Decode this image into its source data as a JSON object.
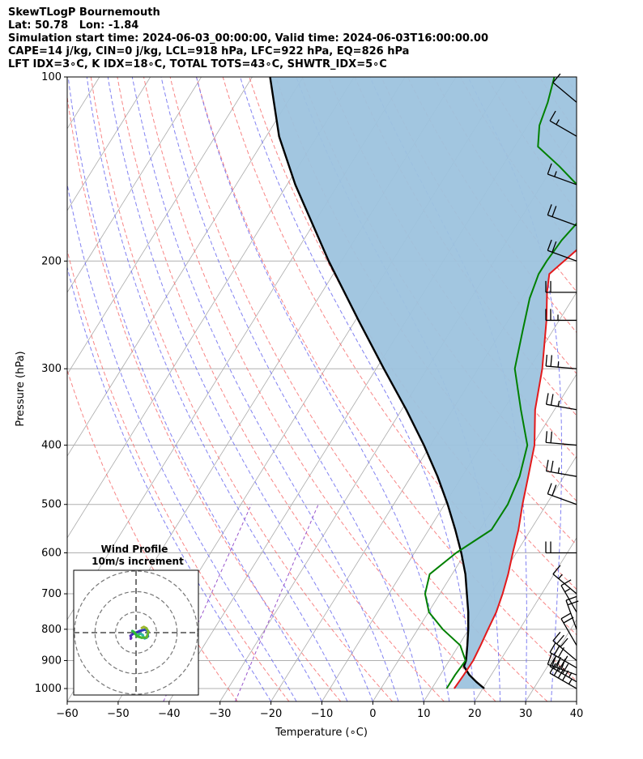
{
  "header": {
    "line1": "SkewTLogP Bournemouth",
    "line2": "Lat: 50.78   Lon: -1.84",
    "line3": "Simulation start time: 2024-06-03_00:00:00, Valid time: 2024-06-03T16:00:00.00",
    "line4": "CAPE=14 j/kg, CIN=0 j/kg, LCL=918 hPa, LFC=922 hPa, EQ=826 hPa",
    "line5": "LFT IDX=3∘C, K IDX=18∘C, TOTAL TOTS=43∘C, SHWTR_IDX=5∘C"
  },
  "chart_data": {
    "type": "line",
    "xlabel": "Temperature (∘C)",
    "ylabel": "Pressure (hPa)",
    "xlim": [
      -60,
      40
    ],
    "ylim": [
      1050,
      100
    ],
    "y_scale": "log",
    "x_ticks": [
      "−60",
      "−50",
      "−40",
      "−30",
      "−20",
      "−10",
      "0",
      "10",
      "20",
      "30",
      "40"
    ],
    "y_ticks": [
      "1000",
      "900",
      "800",
      "700",
      "600",
      "500",
      "400",
      "300",
      "200",
      "100"
    ],
    "grid": true,
    "colors": {
      "temperature": "#e31a1c",
      "dewpoint": "#008000",
      "parcel": "#000000",
      "cape_fill": "#9dc3de",
      "isotherm": "#aaaaaa",
      "dry_adiabat": "#f77070",
      "moist_adiabat": "#6b6bf0",
      "mixing_ratio": "#9955cc",
      "grid": "#b0b0b0"
    },
    "series": [
      {
        "key": "temperature",
        "points": [
          [
            1000,
            14.4
          ],
          [
            950,
            14.6
          ],
          [
            900,
            14.7
          ],
          [
            850,
            14.3
          ],
          [
            800,
            13.8
          ],
          [
            750,
            13.3
          ],
          [
            700,
            12.3
          ],
          [
            650,
            11.0
          ],
          [
            600,
            9.3
          ],
          [
            550,
            7.6
          ],
          [
            500,
            5.3
          ],
          [
            450,
            3.0
          ],
          [
            400,
            0.4
          ],
          [
            350,
            -3.8
          ],
          [
            300,
            -7.4
          ],
          [
            250,
            -12.5
          ],
          [
            225,
            -15.8
          ],
          [
            210,
            -17.6
          ],
          [
            200,
            -16.3
          ],
          [
            190,
            -14.9
          ],
          [
            180,
            -15.6
          ],
          [
            170,
            -16.8
          ],
          [
            160,
            -17.9
          ],
          [
            150,
            -19.6
          ],
          [
            140,
            -21.4
          ],
          [
            130,
            -22.4
          ],
          [
            120,
            -24.1
          ],
          [
            110,
            -27.0
          ],
          [
            100,
            -29.2
          ]
        ]
      },
      {
        "key": "dewpoint",
        "points": [
          [
            1000,
            12.9
          ],
          [
            950,
            12.9
          ],
          [
            900,
            13.2
          ],
          [
            850,
            10.3
          ],
          [
            800,
            4.9
          ],
          [
            750,
            0.1
          ],
          [
            700,
            -2.9
          ],
          [
            650,
            -4.4
          ],
          [
            600,
            -1.8
          ],
          [
            550,
            2.3
          ],
          [
            500,
            2.4
          ],
          [
            450,
            1.3
          ],
          [
            400,
            -1.0
          ],
          [
            350,
            -6.6
          ],
          [
            300,
            -12.8
          ],
          [
            260,
            -15.9
          ],
          [
            230,
            -18.5
          ],
          [
            210,
            -19.7
          ],
          [
            200,
            -19.7
          ],
          [
            185,
            -19.3
          ],
          [
            170,
            -18.1
          ],
          [
            160,
            -20.6
          ],
          [
            150,
            -23.1
          ],
          [
            140,
            -28.8
          ],
          [
            130,
            -35.4
          ],
          [
            120,
            -37.7
          ],
          [
            110,
            -38.9
          ],
          [
            100,
            -40.7
          ]
        ]
      },
      {
        "key": "parcel",
        "points": [
          [
            1000,
            20.3
          ],
          [
            975,
            17.9
          ],
          [
            950,
            15.7
          ],
          [
            920,
            13.6
          ],
          [
            900,
            13.3
          ],
          [
            850,
            11.7
          ],
          [
            800,
            9.9
          ],
          [
            750,
            7.8
          ],
          [
            700,
            5.3
          ],
          [
            650,
            2.6
          ],
          [
            600,
            -0.8
          ],
          [
            550,
            -4.8
          ],
          [
            500,
            -9.4
          ],
          [
            450,
            -14.8
          ],
          [
            400,
            -21.3
          ],
          [
            350,
            -29.1
          ],
          [
            300,
            -38.5
          ],
          [
            250,
            -49.4
          ],
          [
            200,
            -62.5
          ],
          [
            150,
            -78.4
          ],
          [
            125,
            -87.5
          ],
          [
            100,
            -96.5
          ]
        ]
      }
    ],
    "wind_barbs": {
      "units": "kt",
      "levels": [
        {
          "p": 1000,
          "speed": 45,
          "dir": 300
        },
        {
          "p": 975,
          "speed": 45,
          "dir": 300
        },
        {
          "p": 950,
          "speed": 40,
          "dir": 290
        },
        {
          "p": 925,
          "speed": 35,
          "dir": 300
        },
        {
          "p": 900,
          "speed": 30,
          "dir": 310
        },
        {
          "p": 850,
          "speed": 20,
          "dir": 330
        },
        {
          "p": 800,
          "speed": 20,
          "dir": 340
        },
        {
          "p": 750,
          "speed": 15,
          "dir": 330
        },
        {
          "p": 700,
          "speed": 15,
          "dir": 310
        },
        {
          "p": 600,
          "speed": 20,
          "dir": 270
        },
        {
          "p": 500,
          "speed": 20,
          "dir": 290
        },
        {
          "p": 450,
          "speed": 25,
          "dir": 280
        },
        {
          "p": 400,
          "speed": 20,
          "dir": 275
        },
        {
          "p": 350,
          "speed": 25,
          "dir": 280
        },
        {
          "p": 300,
          "speed": 25,
          "dir": 275
        },
        {
          "p": 250,
          "speed": 25,
          "dir": 270
        },
        {
          "p": 225,
          "speed": 20,
          "dir": 270
        },
        {
          "p": 200,
          "speed": 20,
          "dir": 290
        },
        {
          "p": 175,
          "speed": 20,
          "dir": 290
        },
        {
          "p": 150,
          "speed": 15,
          "dir": 290
        },
        {
          "p": 125,
          "speed": 15,
          "dir": 300
        },
        {
          "p": 110,
          "speed": 10,
          "dir": 310
        }
      ]
    },
    "hodograph": {
      "title": "Wind Profile",
      "subtitle": "10m/s increment",
      "ring_step_ms": 10,
      "max_ms": 30,
      "points_ms": [
        [
          -2.6,
          -3.0
        ],
        [
          -2.4,
          -2.6
        ],
        [
          -2.7,
          -1.5
        ],
        [
          -1.3,
          -0.5
        ],
        [
          1.8,
          0.8
        ],
        [
          4.5,
          1.5
        ],
        [
          5.5,
          0.8
        ],
        [
          5.8,
          -1.8
        ],
        [
          5.0,
          -2.5
        ],
        [
          4.2,
          -2.8
        ],
        [
          3.6,
          -2.2
        ],
        [
          3.3,
          -1.2
        ],
        [
          2.2,
          -0.5
        ],
        [
          1.5,
          -0.8
        ],
        [
          0.8,
          -1.5
        ],
        [
          -0.5,
          -0.3
        ],
        [
          -1.8,
          0.8
        ],
        [
          -1.0,
          0.3
        ],
        [
          0.5,
          -1.8
        ],
        [
          2.8,
          -2.5
        ],
        [
          5.2,
          -2.3
        ],
        [
          6.0,
          0.5
        ],
        [
          5.0,
          2.2
        ],
        [
          3.8,
          2.8
        ],
        [
          2.8,
          2.3
        ]
      ]
    }
  }
}
